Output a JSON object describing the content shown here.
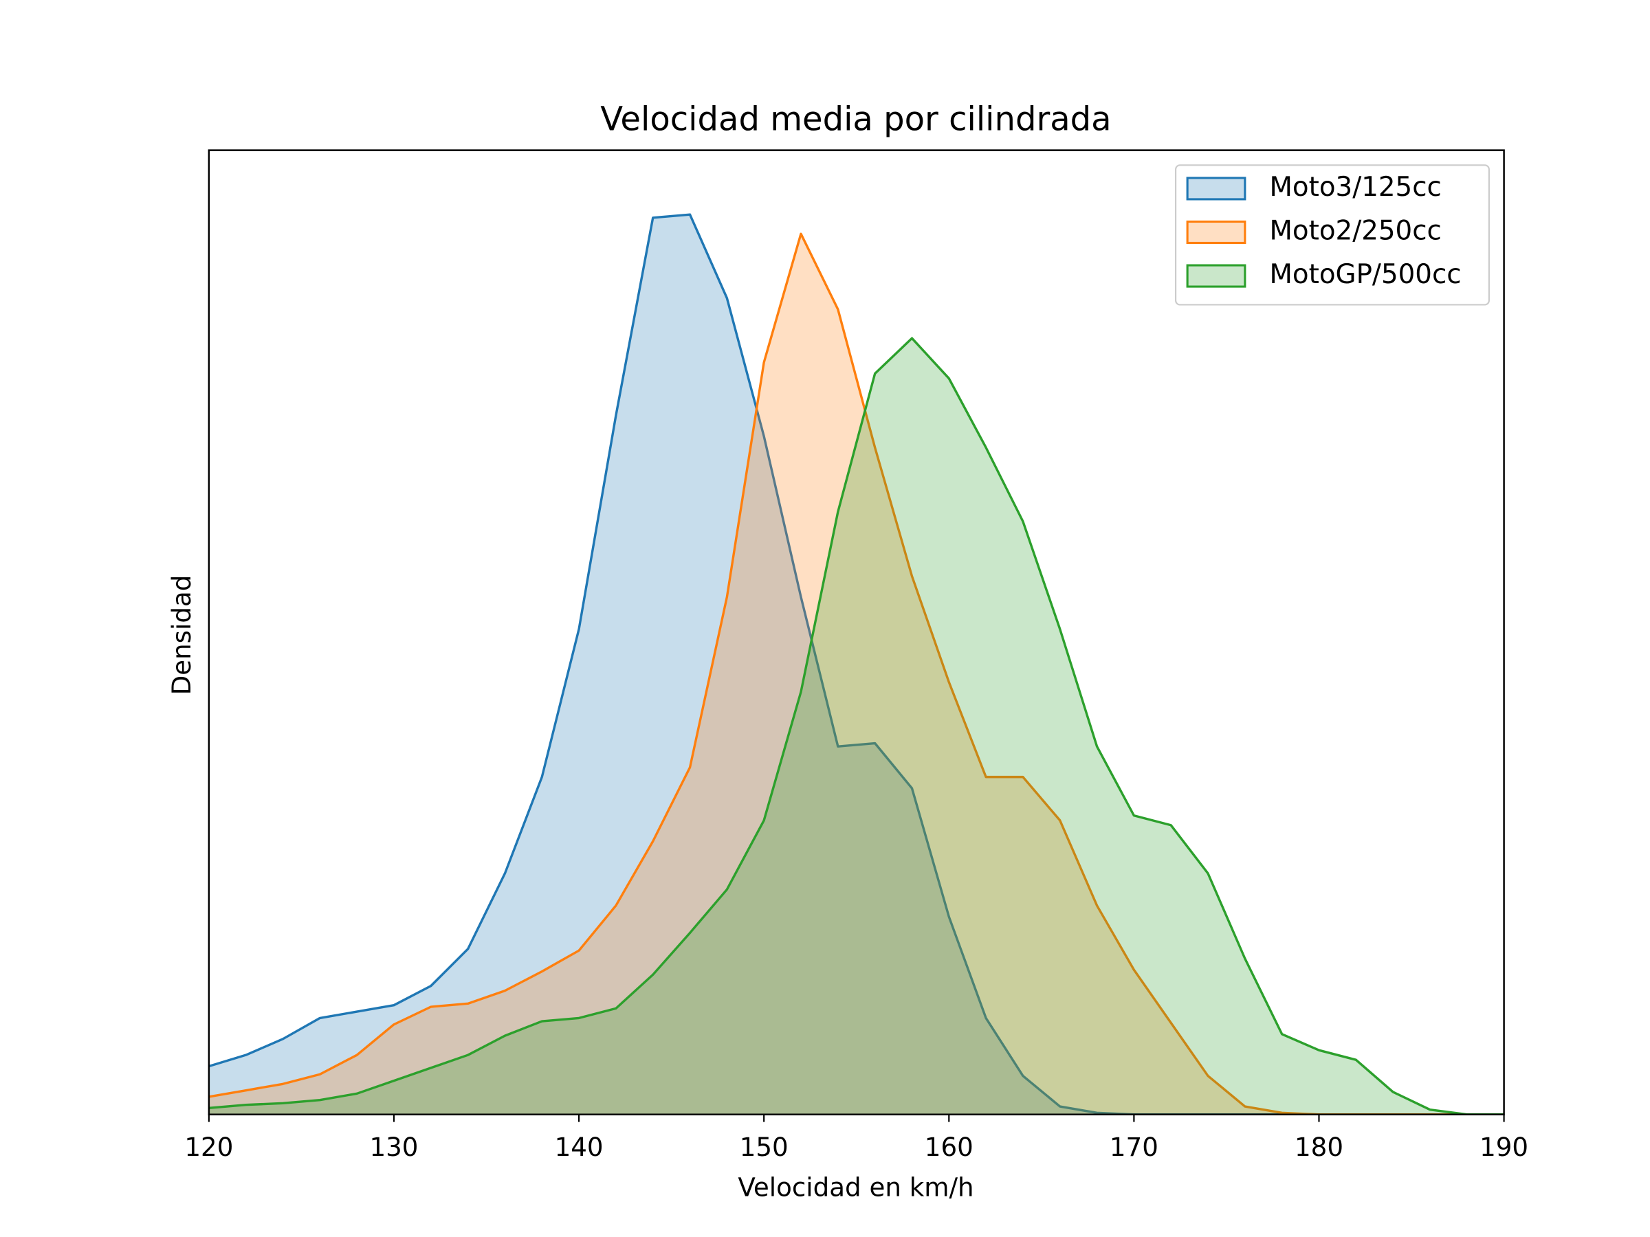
{
  "chart_data": {
    "type": "kde",
    "title": "Velocidad media por cilindrada",
    "xlabel": "Velocidad en km/h",
    "ylabel": "Densidad",
    "x": [
      120,
      122,
      124,
      126,
      128,
      130,
      132,
      134,
      136,
      138,
      140,
      142,
      144,
      146,
      148,
      150,
      152,
      154,
      156,
      158,
      160,
      162,
      164,
      166,
      168,
      170,
      172,
      174,
      176,
      178,
      180,
      182,
      184,
      186,
      188,
      190
    ],
    "series": [
      {
        "name": "Moto3/125cc",
        "color": "#1f77b4",
        "values": [
          0.003,
          0.0037,
          0.0047,
          0.006,
          0.0064,
          0.0068,
          0.008,
          0.0103,
          0.015,
          0.021,
          0.0302,
          0.0435,
          0.0558,
          0.056,
          0.0508,
          0.0422,
          0.0322,
          0.0229,
          0.0231,
          0.0203,
          0.0123,
          0.006,
          0.0024,
          0.0005,
          0.0001,
          0,
          0,
          0,
          0,
          0,
          0,
          0,
          0,
          0,
          0,
          0
        ]
      },
      {
        "name": "Moto2/250cc",
        "color": "#ff7f0e",
        "values": [
          0.0011,
          0.0015,
          0.0019,
          0.0025,
          0.0037,
          0.0056,
          0.0067,
          0.0069,
          0.0077,
          0.0089,
          0.0102,
          0.013,
          0.017,
          0.0216,
          0.0322,
          0.0468,
          0.0548,
          0.0501,
          0.0415,
          0.0335,
          0.0269,
          0.021,
          0.021,
          0.0183,
          0.013,
          0.009,
          0.0057,
          0.0024,
          0.0005,
          0.0001,
          0,
          0,
          0,
          0,
          0,
          0
        ]
      },
      {
        "name": "MotoGP/500cc",
        "color": "#2ca02c",
        "values": [
          0.0004,
          0.0006,
          0.0007,
          0.0009,
          0.0013,
          0.0021,
          0.0029,
          0.0037,
          0.0049,
          0.0058,
          0.006,
          0.0066,
          0.0087,
          0.0113,
          0.014,
          0.0183,
          0.0263,
          0.0375,
          0.0461,
          0.0483,
          0.0458,
          0.0415,
          0.0369,
          0.0302,
          0.0229,
          0.0186,
          0.018,
          0.015,
          0.0097,
          0.005,
          0.004,
          0.0034,
          0.0014,
          0.0003,
          0,
          0
        ]
      }
    ],
    "fill_alpha": 0.25,
    "xlim": [
      120,
      190
    ],
    "xticks": [
      120,
      130,
      140,
      150,
      160,
      170,
      180,
      190
    ],
    "ylim": [
      0,
      0.06
    ],
    "legend": "upper right"
  }
}
